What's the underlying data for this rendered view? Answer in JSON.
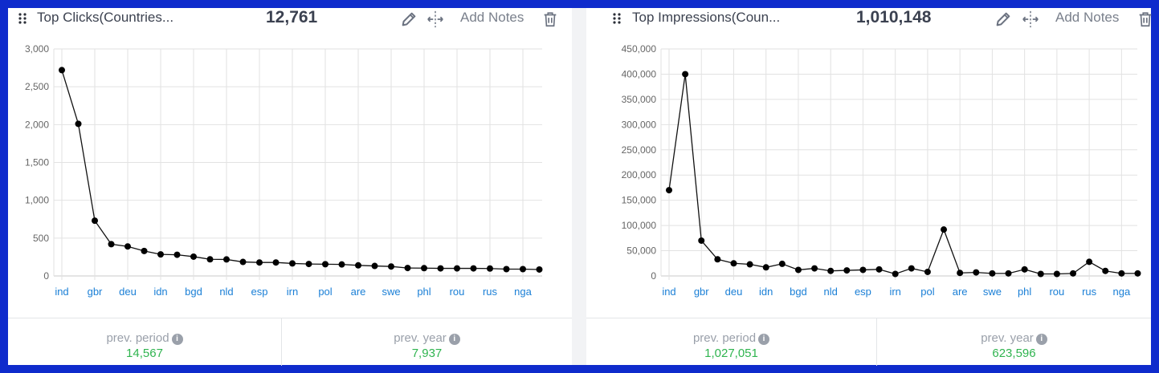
{
  "colors": {
    "frame": "#0f2bcc",
    "positive": "#2fb44f",
    "axis_tick_label": "#1a7fd6",
    "line": "#000000"
  },
  "panels": [
    {
      "title": "Top Clicks(Countries...",
      "total": "12,761",
      "actions": {
        "edit_icon": "pencil-icon",
        "move_icon": "move-horizontal-icon",
        "notes_label": "Add Notes",
        "delete_icon": "trash-icon"
      },
      "footer": [
        {
          "label": "prev. period",
          "value": "14,567"
        },
        {
          "label": "prev. year",
          "value": "7,937"
        }
      ]
    },
    {
      "title": "Top Impressions(Coun...",
      "total": "1,010,148",
      "actions": {
        "edit_icon": "pencil-icon",
        "move_icon": "move-horizontal-icon",
        "notes_label": "Add Notes",
        "delete_icon": "trash-icon"
      },
      "footer": [
        {
          "label": "prev. period",
          "value": "1,027,051"
        },
        {
          "label": "prev. year",
          "value": "623,596"
        }
      ]
    }
  ],
  "chart_data": [
    {
      "type": "line",
      "title": "Top Clicks(Countries...",
      "xlabel": "",
      "ylabel": "",
      "ylim": [
        0,
        3000
      ],
      "yticks": [
        "0",
        "500",
        "1,000",
        "1,500",
        "2,000",
        "2,500",
        "3,000"
      ],
      "grid": true,
      "legend": "none",
      "x_tick_labels": [
        "ind",
        "gbr",
        "deu",
        "idn",
        "bgd",
        "nld",
        "esp",
        "irn",
        "pol",
        "are",
        "swe",
        "phl",
        "rou",
        "rus",
        "nga"
      ],
      "categories": [
        "ind",
        "",
        "gbr",
        "",
        "deu",
        "",
        "idn",
        "",
        "bgd",
        "",
        "nld",
        "",
        "esp",
        "",
        "irn",
        "",
        "pol",
        "",
        "are",
        "",
        "swe",
        "",
        "phl",
        "",
        "rou",
        "",
        "rus",
        "",
        "nga",
        ""
      ],
      "values": [
        2720,
        2010,
        730,
        420,
        390,
        330,
        285,
        280,
        255,
        220,
        218,
        185,
        178,
        178,
        165,
        158,
        155,
        152,
        140,
        132,
        125,
        105,
        103,
        100,
        100,
        100,
        98,
        90,
        90,
        85
      ]
    },
    {
      "type": "line",
      "title": "Top Impressions(Coun...",
      "xlabel": "",
      "ylabel": "",
      "ylim": [
        0,
        450000
      ],
      "yticks": [
        "0",
        "50,000",
        "100,000",
        "150,000",
        "200,000",
        "250,000",
        "300,000",
        "350,000",
        "400,000",
        "450,000"
      ],
      "grid": true,
      "legend": "none",
      "x_tick_labels": [
        "ind",
        "gbr",
        "deu",
        "idn",
        "bgd",
        "nld",
        "esp",
        "irn",
        "pol",
        "are",
        "swe",
        "phl",
        "rou",
        "rus",
        "nga"
      ],
      "categories": [
        "ind",
        "",
        "gbr",
        "",
        "deu",
        "",
        "idn",
        "",
        "bgd",
        "",
        "nld",
        "",
        "esp",
        "",
        "irn",
        "",
        "pol",
        "",
        "are",
        "",
        "swe",
        "",
        "phl",
        "",
        "rou",
        "",
        "rus",
        "",
        "nga",
        ""
      ],
      "values": [
        170000,
        400000,
        70000,
        33000,
        25000,
        23000,
        17000,
        24000,
        12000,
        15000,
        10000,
        11000,
        12000,
        13000,
        4000,
        15000,
        8000,
        92000,
        6000,
        7000,
        5000,
        5000,
        13000,
        4000,
        4000,
        5000,
        28000,
        10000,
        5000,
        5000
      ]
    }
  ]
}
